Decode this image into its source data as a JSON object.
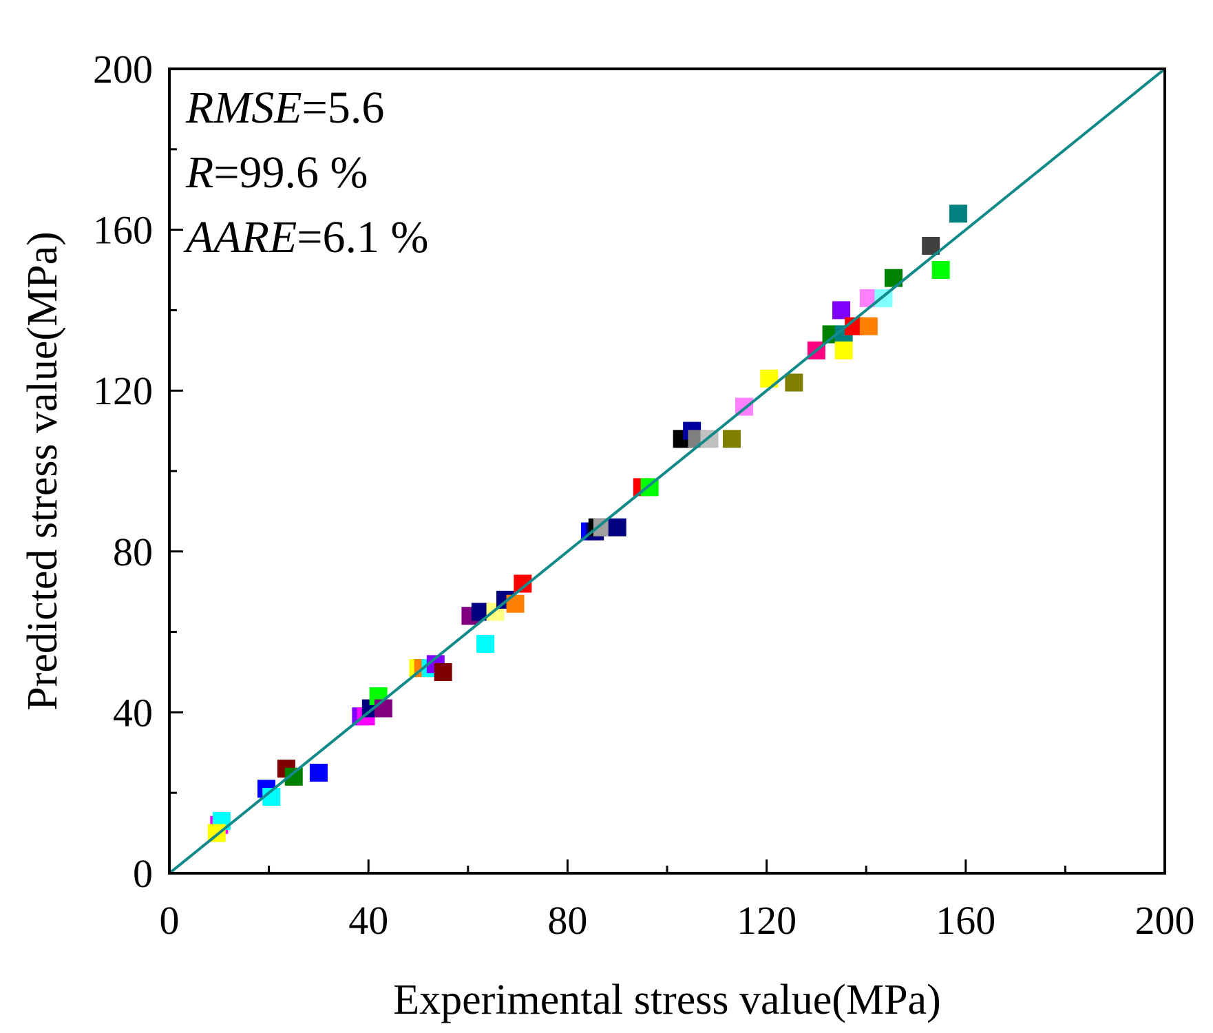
{
  "chart_data": {
    "type": "scatter",
    "title": "",
    "xlabel": "Experimental stress value(MPa)",
    "ylabel": "Predicted stress value(MPa)",
    "xlim": [
      0,
      200
    ],
    "ylim": [
      0,
      200
    ],
    "xticks": [
      "0",
      "40",
      "80",
      "120",
      "160",
      "200"
    ],
    "yticks": [
      "0",
      "40",
      "80",
      "120",
      "160",
      "200"
    ],
    "grid": false,
    "legend": "none",
    "reference_line": {
      "from": [
        0,
        0
      ],
      "to": [
        200,
        200
      ],
      "color": "#138a8a"
    },
    "stats": [
      {
        "key": "RMSE",
        "value": "=5.6"
      },
      {
        "key": "R",
        "value": "=99.6 %"
      },
      {
        "key": "AARE",
        "value": "=6.1 %"
      }
    ],
    "points": [
      {
        "x": 10,
        "y": 12,
        "color": "#ff00ff"
      },
      {
        "x": 10.5,
        "y": 13,
        "color": "#00ffff"
      },
      {
        "x": 9.5,
        "y": 10,
        "color": "#ffff00"
      },
      {
        "x": 19.5,
        "y": 21,
        "color": "#0000ff"
      },
      {
        "x": 20.5,
        "y": 19,
        "color": "#00ffff"
      },
      {
        "x": 23.5,
        "y": 26,
        "color": "#800000"
      },
      {
        "x": 25,
        "y": 24,
        "color": "#008000"
      },
      {
        "x": 30,
        "y": 25,
        "color": "#0000ff"
      },
      {
        "x": 38.5,
        "y": 39,
        "color": "#8000ff"
      },
      {
        "x": 39.5,
        "y": 39,
        "color": "#ff00ff"
      },
      {
        "x": 40.5,
        "y": 41,
        "color": "#000080"
      },
      {
        "x": 42,
        "y": 44,
        "color": "#00ff00"
      },
      {
        "x": 43,
        "y": 41,
        "color": "#800080"
      },
      {
        "x": 50,
        "y": 51,
        "color": "#ffff00"
      },
      {
        "x": 51,
        "y": 51,
        "color": "#ff8000"
      },
      {
        "x": 52.5,
        "y": 51,
        "color": "#00ffff"
      },
      {
        "x": 53.5,
        "y": 52,
        "color": "#8000ff"
      },
      {
        "x": 55,
        "y": 50,
        "color": "#800000"
      },
      {
        "x": 60.5,
        "y": 64,
        "color": "#800080"
      },
      {
        "x": 62.5,
        "y": 65,
        "color": "#000080"
      },
      {
        "x": 63.5,
        "y": 57,
        "color": "#00ffff"
      },
      {
        "x": 65.5,
        "y": 65,
        "color": "#ffff80"
      },
      {
        "x": 67.5,
        "y": 68,
        "color": "#000080"
      },
      {
        "x": 69.5,
        "y": 67,
        "color": "#ff8000"
      },
      {
        "x": 71,
        "y": 72,
        "color": "#ff0000"
      },
      {
        "x": 84.5,
        "y": 85,
        "color": "#0000ff"
      },
      {
        "x": 85.5,
        "y": 85,
        "color": "#000080"
      },
      {
        "x": 86,
        "y": 86,
        "color": "#000000"
      },
      {
        "x": 87,
        "y": 86,
        "color": "#a0a0a0"
      },
      {
        "x": 90,
        "y": 86,
        "color": "#000080"
      },
      {
        "x": 95,
        "y": 96,
        "color": "#ff0000"
      },
      {
        "x": 96.5,
        "y": 96,
        "color": "#00ff00"
      },
      {
        "x": 103,
        "y": 108,
        "color": "#000000"
      },
      {
        "x": 105,
        "y": 110,
        "color": "#0000a0"
      },
      {
        "x": 106,
        "y": 108,
        "color": "#808080"
      },
      {
        "x": 108.5,
        "y": 108,
        "color": "#c0c0c0"
      },
      {
        "x": 113,
        "y": 108,
        "color": "#808000"
      },
      {
        "x": 115.5,
        "y": 116,
        "color": "#ff80ff"
      },
      {
        "x": 120.5,
        "y": 123,
        "color": "#ffff00"
      },
      {
        "x": 125.5,
        "y": 122,
        "color": "#808000"
      },
      {
        "x": 130,
        "y": 130,
        "color": "#ff0080"
      },
      {
        "x": 133,
        "y": 134,
        "color": "#008000"
      },
      {
        "x": 135,
        "y": 140,
        "color": "#8000ff"
      },
      {
        "x": 135.5,
        "y": 134,
        "color": "#008080"
      },
      {
        "x": 135.5,
        "y": 130,
        "color": "#ffff00"
      },
      {
        "x": 137.5,
        "y": 136,
        "color": "#ff0000"
      },
      {
        "x": 140.5,
        "y": 136,
        "color": "#ff8000"
      },
      {
        "x": 140.5,
        "y": 143,
        "color": "#ff80ff"
      },
      {
        "x": 143.5,
        "y": 143,
        "color": "#80ffff"
      },
      {
        "x": 145.5,
        "y": 148,
        "color": "#008000"
      },
      {
        "x": 153,
        "y": 156,
        "color": "#404040"
      },
      {
        "x": 155,
        "y": 150,
        "color": "#00ff00"
      },
      {
        "x": 158.5,
        "y": 164,
        "color": "#008080"
      }
    ]
  }
}
